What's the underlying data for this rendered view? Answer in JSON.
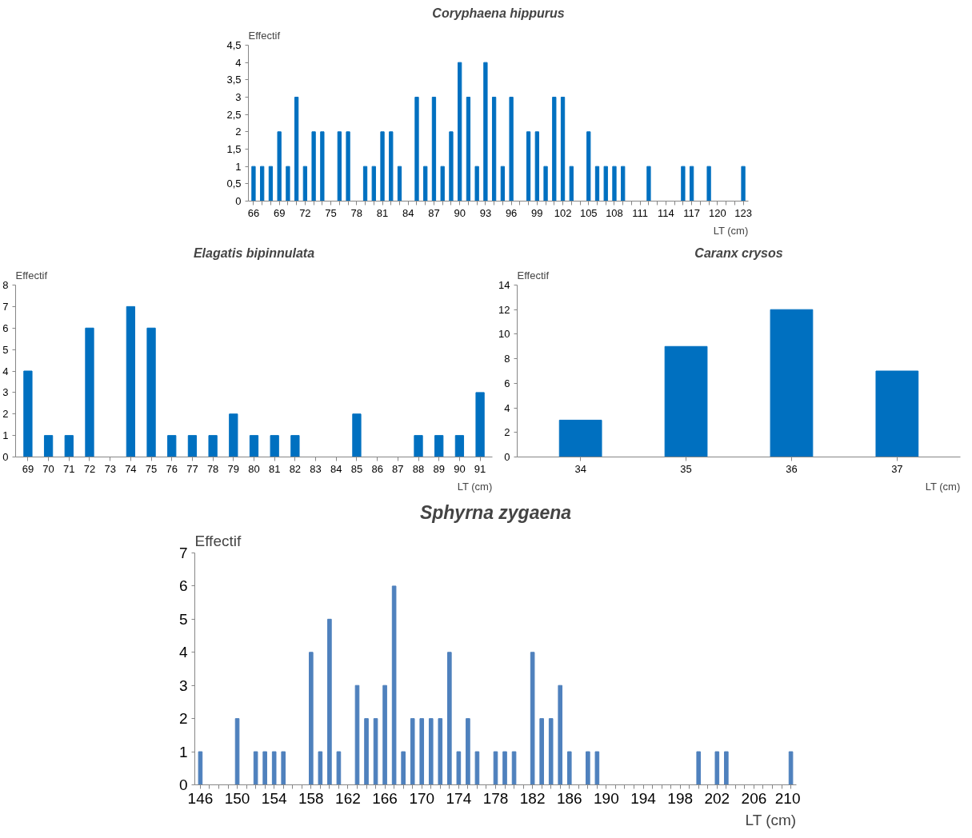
{
  "chart_data": [
    {
      "type": "bar",
      "title": "Coryphaena hippurus",
      "ylabel": "Effectif",
      "xlabel": "LT (cm)",
      "color": "#0070c0",
      "categories": [
        "66",
        null,
        null,
        "69",
        null,
        null,
        "72",
        null,
        null,
        "75",
        null,
        null,
        "78",
        null,
        null,
        "81",
        null,
        null,
        "84",
        null,
        null,
        "87",
        null,
        null,
        "90",
        null,
        null,
        "93",
        null,
        null,
        "96",
        null,
        null,
        "99",
        null,
        null,
        "102",
        null,
        null,
        "105",
        null,
        null,
        "108",
        null,
        null,
        "111",
        null,
        null,
        "114",
        null,
        null,
        "117",
        null,
        null,
        "120",
        null,
        null,
        "123"
      ],
      "values": [
        1,
        1,
        1,
        2,
        1,
        3,
        1,
        2,
        2,
        0,
        2,
        2,
        0,
        1,
        1,
        2,
        2,
        1,
        0,
        3,
        1,
        3,
        1,
        2,
        4,
        3,
        1,
        4,
        3,
        1,
        3,
        0,
        2,
        2,
        1,
        3,
        3,
        1,
        0,
        2,
        1,
        1,
        1,
        1,
        0,
        0,
        1,
        0,
        0,
        0,
        1,
        1,
        0,
        1,
        0,
        0,
        0,
        1
      ],
      "ylim": [
        0,
        4.5
      ],
      "yticks": [
        0,
        {
          "value": 0.5,
          "label": "0,5"
        },
        1,
        {
          "value": 1.5,
          "label": "1,5"
        },
        2,
        {
          "value": 2.5,
          "label": "2,5"
        },
        3,
        {
          "value": 3.5,
          "label": "3,5"
        },
        4,
        {
          "value": 4.5,
          "label": "4,5"
        }
      ]
    },
    {
      "type": "bar",
      "title": "Elagatis bipinnulata",
      "ylabel": "Effectif",
      "xlabel": "LT (cm)",
      "color": "#0070c0",
      "categories": [
        "69",
        "70",
        "71",
        "72",
        "73",
        "74",
        "75",
        "76",
        "77",
        "78",
        "79",
        "80",
        "81",
        "82",
        "83",
        "84",
        "85",
        "86",
        "87",
        "88",
        "89",
        "90",
        "91"
      ],
      "values": [
        4,
        1,
        1,
        6,
        0,
        7,
        6,
        1,
        1,
        1,
        2,
        1,
        1,
        1,
        0,
        0,
        2,
        0,
        0,
        1,
        1,
        1,
        3
      ],
      "ylim": [
        0,
        8
      ],
      "yticks": [
        0,
        1,
        2,
        3,
        4,
        5,
        6,
        7,
        8
      ]
    },
    {
      "type": "bar",
      "title": "Caranx crysos",
      "ylabel": "Effectif",
      "xlabel": "LT (cm)",
      "color": "#0070c0",
      "categories": [
        "34",
        "35",
        "36",
        "37"
      ],
      "values": [
        3,
        9,
        12,
        7
      ],
      "ylim": [
        0,
        14
      ],
      "yticks": [
        0,
        2,
        4,
        6,
        8,
        10,
        12,
        14
      ]
    },
    {
      "type": "bar",
      "title": "Sphyrna zygaena",
      "ylabel": "Effectif",
      "xlabel": "LT (cm)",
      "color": "#4f81bd",
      "categories": [
        "146",
        null,
        null,
        null,
        "150",
        null,
        null,
        null,
        "154",
        null,
        null,
        null,
        "158",
        null,
        null,
        null,
        "162",
        null,
        null,
        null,
        "166",
        null,
        null,
        null,
        "170",
        null,
        null,
        null,
        "174",
        null,
        null,
        null,
        "178",
        null,
        null,
        null,
        "182",
        null,
        null,
        null,
        "186",
        null,
        null,
        null,
        "190",
        null,
        null,
        null,
        "194",
        null,
        null,
        null,
        "198",
        null,
        null,
        null,
        "202",
        null,
        null,
        null,
        "206",
        null,
        null,
        null,
        "210"
      ],
      "values": [
        1,
        0,
        0,
        0,
        2,
        0,
        1,
        1,
        1,
        1,
        0,
        0,
        4,
        1,
        5,
        1,
        0,
        3,
        2,
        2,
        3,
        6,
        1,
        2,
        2,
        2,
        2,
        4,
        1,
        2,
        1,
        0,
        1,
        1,
        1,
        0,
        4,
        2,
        2,
        3,
        1,
        0,
        1,
        1,
        0,
        0,
        0,
        0,
        0,
        0,
        0,
        0,
        0,
        0,
        1,
        0,
        1,
        1,
        0,
        0,
        0,
        0,
        0,
        0,
        1
      ],
      "ylim": [
        0,
        7
      ],
      "yticks": [
        0,
        1,
        2,
        3,
        4,
        5,
        6,
        7
      ]
    }
  ]
}
